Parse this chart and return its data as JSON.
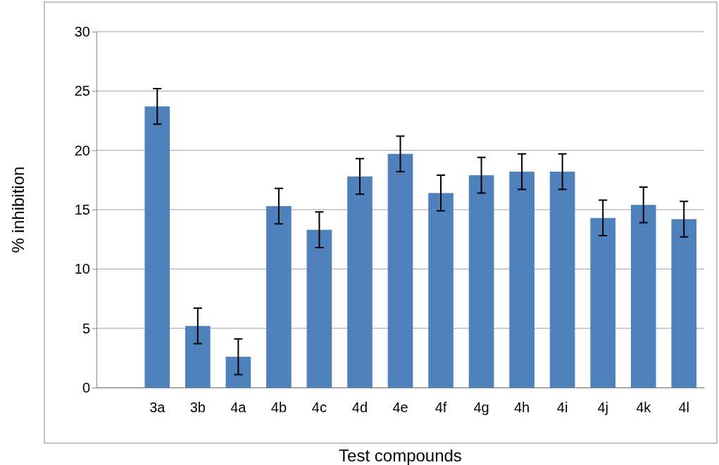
{
  "chart_data": {
    "type": "bar",
    "xlabel": "Test compounds",
    "ylabel": "% inhibition",
    "categories": [
      null,
      "3a",
      "3b",
      "4a",
      "4b",
      "4c",
      "4d",
      "4e",
      "4f",
      "4g",
      "4h",
      "4i",
      "4j",
      "4k",
      "4l"
    ],
    "values": [
      null,
      23.7,
      5.2,
      2.6,
      15.3,
      13.3,
      17.8,
      19.7,
      16.4,
      17.9,
      18.2,
      18.2,
      14.3,
      15.4,
      14.2
    ],
    "errors": [
      null,
      1.5,
      1.5,
      1.5,
      1.5,
      1.5,
      1.5,
      1.5,
      1.5,
      1.5,
      1.5,
      1.5,
      1.5,
      1.5,
      1.5
    ],
    "color": "#4f81bd",
    "ylim": [
      0,
      30
    ],
    "yticks": [
      0,
      5,
      10,
      15,
      20,
      25,
      30
    ],
    "grid": "y"
  }
}
